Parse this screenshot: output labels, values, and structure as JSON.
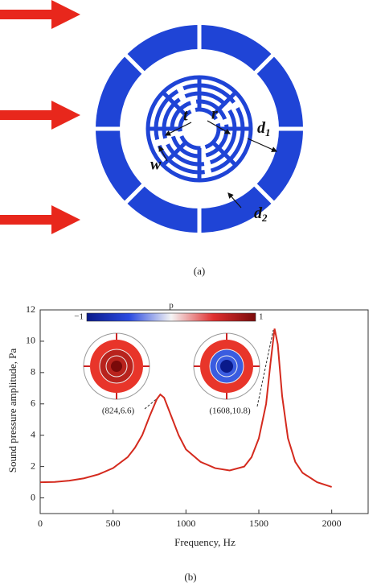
{
  "diagram": {
    "panel_label": "(a)",
    "labels": {
      "t": "t",
      "r": "r",
      "w": "w",
      "d1": {
        "main": "d",
        "sub": "1"
      },
      "d2": {
        "main": "d",
        "sub": "2"
      }
    }
  },
  "chart_data": {
    "type": "line",
    "panel_label": "(b)",
    "x_label": "Frequency, Hz",
    "y_label": "Sound pressure amplitude, Pa",
    "x": [
      0,
      100,
      200,
      300,
      400,
      500,
      600,
      650,
      700,
      750,
      800,
      824,
      850,
      900,
      950,
      1000,
      1100,
      1200,
      1300,
      1400,
      1450,
      1500,
      1550,
      1580,
      1608,
      1630,
      1660,
      1700,
      1750,
      1800,
      1900,
      2000
    ],
    "series": [
      {
        "color": "#d42a1e",
        "values": [
          1.0,
          1.02,
          1.1,
          1.25,
          1.5,
          1.9,
          2.6,
          3.2,
          4.0,
          5.2,
          6.3,
          6.6,
          6.4,
          5.2,
          4.0,
          3.1,
          2.3,
          1.9,
          1.75,
          2.0,
          2.6,
          3.8,
          6.0,
          8.6,
          10.8,
          9.8,
          6.5,
          3.8,
          2.3,
          1.6,
          1.0,
          0.7
        ]
      }
    ],
    "xlim": [
      0,
      2250
    ],
    "ylim": [
      -1,
      12
    ],
    "xticks": [
      0,
      500,
      1000,
      1500,
      2000
    ],
    "yticks": [
      0,
      2,
      4,
      6,
      8,
      10,
      12
    ],
    "annotations": [
      "(824,6.6)",
      "(1608,10.8)"
    ],
    "colorbar": {
      "label": "p",
      "range": [
        -1,
        1
      ],
      "ticks": [
        {
          "value": -1,
          "label": "−1"
        },
        1
      ]
    }
  }
}
